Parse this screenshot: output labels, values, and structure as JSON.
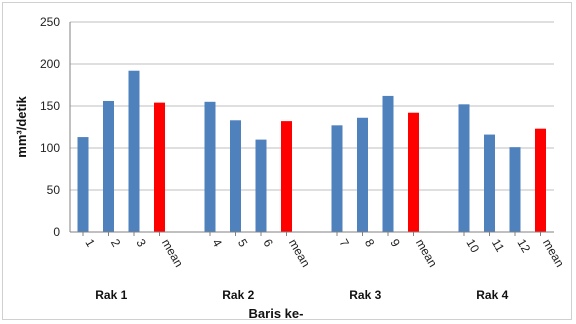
{
  "chart_data": {
    "type": "bar",
    "title": "",
    "xlabel": "Baris ke-",
    "ylabel": "mm³/detik",
    "ylim": [
      0,
      250
    ],
    "yticks": [
      "0",
      "50",
      "100",
      "150",
      "200",
      "250"
    ],
    "grid": true,
    "legend": "none",
    "colors": {
      "row": "#4F81BD",
      "mean": "#FF0000",
      "grid": "#BFBFBF",
      "axis": "#808080"
    },
    "groups": [
      {
        "name": "Rak 1",
        "categories": [
          "1",
          "2",
          "3",
          "mean"
        ],
        "values": [
          113,
          156,
          192,
          154
        ]
      },
      {
        "name": "Rak 2",
        "categories": [
          "4",
          "5",
          "6",
          "mean"
        ],
        "values": [
          155,
          133,
          110,
          132
        ]
      },
      {
        "name": "Rak 3",
        "categories": [
          "7",
          "8",
          "9",
          "mean"
        ],
        "values": [
          127,
          136,
          162,
          142
        ]
      },
      {
        "name": "Rak 4",
        "categories": [
          "10",
          "11",
          "12",
          "mean"
        ],
        "values": [
          152,
          116,
          101,
          123
        ]
      }
    ]
  }
}
